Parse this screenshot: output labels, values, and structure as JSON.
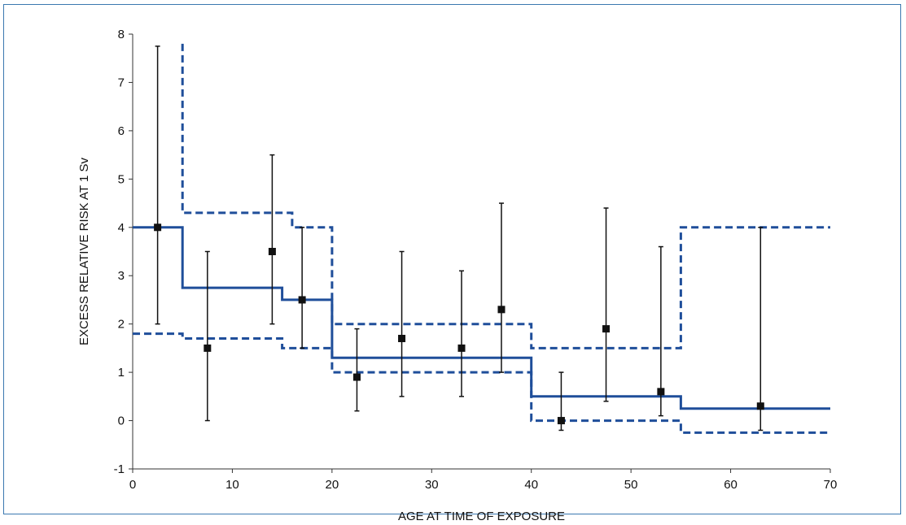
{
  "chart_data": {
    "type": "line",
    "xlabel": "AGE AT TIME OF EXPOSURE",
    "ylabel": "EXCESS RELATIVE RISK AT 1 Sv",
    "xlim": [
      0,
      70
    ],
    "ylim": [
      -1,
      8
    ],
    "xticks": [
      "0",
      "10",
      "20",
      "30",
      "40",
      "50",
      "60",
      "70"
    ],
    "yticks": [
      "-1",
      "0",
      "1",
      "2",
      "3",
      "4",
      "5",
      "6",
      "7",
      "8"
    ],
    "grid": false,
    "colors": {
      "step": "#1f4e9a",
      "points": "#111111"
    },
    "series": [
      {
        "style": "solid-step",
        "x": [
          0,
          5,
          5,
          15,
          15,
          20,
          20,
          40,
          40,
          55,
          55,
          70
        ],
        "y": [
          4.0,
          4.0,
          2.75,
          2.75,
          2.5,
          2.5,
          1.3,
          1.3,
          0.5,
          0.5,
          0.25,
          0.25
        ]
      },
      {
        "style": "dashed-step-upper",
        "x": [
          5,
          5,
          16,
          16,
          20,
          20,
          40,
          40,
          55,
          55,
          70
        ],
        "y": [
          7.8,
          4.3,
          4.3,
          4.0,
          4.0,
          2.0,
          2.0,
          1.5,
          1.5,
          4.0,
          4.0
        ]
      },
      {
        "style": "dashed-step-lower",
        "x": [
          0,
          5,
          5,
          15,
          15,
          20,
          20,
          40,
          40,
          55,
          55,
          70
        ],
        "y": [
          1.8,
          1.8,
          1.7,
          1.7,
          1.5,
          1.5,
          1.0,
          1.0,
          0.0,
          0.0,
          -0.25,
          -0.25
        ]
      },
      {
        "style": "points-with-error-bars",
        "points": [
          {
            "x": 2.5,
            "y": 4.0,
            "lo": 2.0,
            "hi": 7.75
          },
          {
            "x": 7.5,
            "y": 1.5,
            "lo": 0.0,
            "hi": 3.5
          },
          {
            "x": 14,
            "y": 3.5,
            "lo": 2.0,
            "hi": 5.5
          },
          {
            "x": 17,
            "y": 2.5,
            "lo": 1.5,
            "hi": 4.0
          },
          {
            "x": 22.5,
            "y": 0.9,
            "lo": 0.2,
            "hi": 1.9
          },
          {
            "x": 27,
            "y": 1.7,
            "lo": 0.5,
            "hi": 3.5
          },
          {
            "x": 33,
            "y": 1.5,
            "lo": 0.5,
            "hi": 3.1
          },
          {
            "x": 37,
            "y": 2.3,
            "lo": 1.0,
            "hi": 4.5
          },
          {
            "x": 43,
            "y": 0.0,
            "lo": -0.2,
            "hi": 1.0
          },
          {
            "x": 47.5,
            "y": 1.9,
            "lo": 0.4,
            "hi": 4.4
          },
          {
            "x": 53,
            "y": 0.6,
            "lo": 0.1,
            "hi": 3.6
          },
          {
            "x": 63,
            "y": 0.3,
            "lo": -0.2,
            "hi": 4.0
          }
        ]
      }
    ]
  }
}
